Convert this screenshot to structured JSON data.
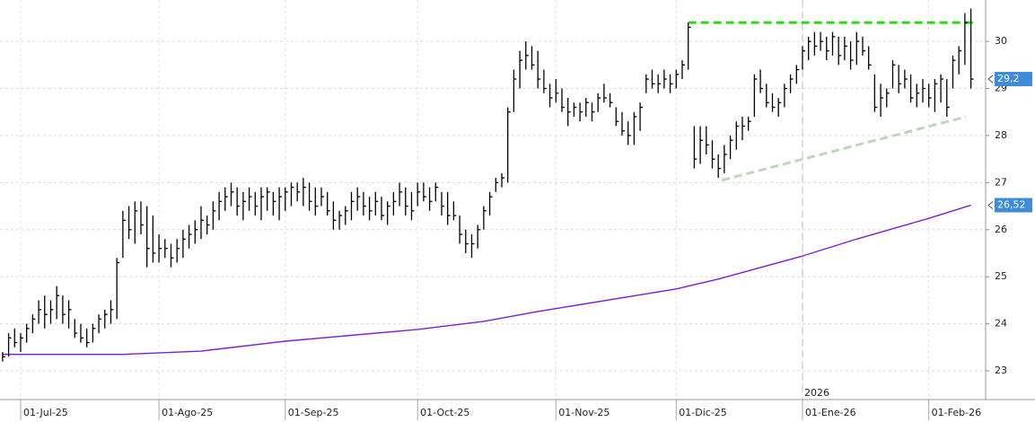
{
  "chart_data": {
    "type": "ohlc",
    "color": "#000000",
    "x": [
      -3,
      -2,
      -1,
      0,
      1,
      2,
      3,
      4,
      5,
      6,
      7,
      8,
      9,
      10,
      11,
      12,
      13,
      14,
      15,
      16,
      17,
      18,
      19,
      20,
      21,
      22,
      23,
      24,
      25,
      26,
      27,
      28,
      29,
      30,
      31,
      32,
      33,
      34,
      35,
      36,
      37,
      38,
      39,
      40,
      41,
      42,
      43,
      44,
      45,
      46,
      47,
      48,
      49,
      50,
      51,
      52,
      53,
      54,
      55,
      56,
      57,
      58,
      59,
      60,
      61,
      62,
      63,
      64,
      65,
      66,
      67,
      68,
      69,
      70,
      71,
      72,
      73,
      74,
      75,
      76,
      77,
      78,
      79,
      80,
      81,
      82,
      83,
      84,
      85,
      86,
      87,
      88,
      89,
      90,
      91,
      92,
      93,
      94,
      95,
      96,
      97,
      98,
      99,
      100,
      101,
      102,
      103,
      104,
      105,
      106,
      107,
      108,
      109,
      110,
      111,
      112,
      113,
      114,
      115,
      116,
      117,
      118,
      119,
      120,
      121,
      122,
      123,
      124,
      125,
      126,
      127,
      128,
      129,
      130,
      131,
      132,
      133,
      134,
      135,
      136,
      137,
      138,
      139,
      140,
      141,
      142,
      143,
      144,
      145,
      146,
      147,
      148,
      149,
      150,
      151,
      152,
      153,
      154,
      155,
      156,
      157,
      158
    ],
    "low": [
      23.2,
      23.3,
      23.5,
      23.4,
      23.6,
      23.8,
      24.0,
      23.9,
      24.0,
      24.1,
      24.0,
      23.9,
      23.7,
      23.6,
      23.5,
      23.6,
      23.8,
      23.9,
      24.0,
      24.1,
      25.4,
      25.8,
      25.7,
      25.9,
      25.2,
      25.3,
      25.3,
      25.4,
      25.2,
      25.3,
      25.4,
      25.6,
      25.7,
      25.8,
      25.9,
      26.0,
      26.2,
      26.4,
      26.5,
      26.3,
      26.2,
      26.4,
      26.3,
      26.2,
      26.4,
      26.3,
      26.2,
      26.4,
      26.5,
      26.6,
      26.5,
      26.4,
      26.3,
      26.5,
      26.3,
      26.0,
      26.0,
      26.1,
      26.2,
      26.4,
      26.3,
      26.2,
      26.3,
      26.2,
      26.1,
      26.3,
      26.5,
      26.3,
      26.2,
      26.5,
      26.6,
      26.4,
      26.6,
      26.3,
      26.1,
      26.2,
      25.7,
      25.5,
      25.4,
      25.6,
      26.0,
      26.3,
      26.8,
      26.9,
      27.0,
      28.5,
      29.0,
      29.4,
      29.4,
      29.0,
      28.9,
      28.6,
      28.7,
      28.5,
      28.2,
      28.4,
      28.3,
      28.4,
      28.3,
      28.5,
      28.7,
      28.6,
      28.2,
      28.0,
      27.8,
      27.8,
      28.1,
      28.9,
      29.0,
      28.9,
      29.0,
      28.9,
      29.0,
      29.2,
      29.4,
      27.3,
      27.4,
      27.6,
      27.3,
      27.1,
      27.2,
      27.5,
      27.7,
      27.9,
      28.1,
      28.4,
      28.9,
      28.6,
      28.5,
      28.4,
      28.6,
      28.9,
      29.1,
      29.4,
      29.6,
      29.7,
      29.8,
      29.6,
      29.7,
      29.5,
      29.6,
      29.4,
      29.5,
      29.7,
      29.4,
      28.5,
      28.4,
      28.6,
      29.0,
      28.9,
      29.0,
      28.7,
      28.6,
      28.7,
      28.6,
      28.5,
      28.7,
      28.4,
      29.0,
      29.3,
      29.5,
      29.0
    ],
    "high": [
      23.4,
      23.8,
      23.9,
      23.8,
      24.0,
      24.2,
      24.5,
      24.6,
      24.5,
      24.8,
      24.6,
      24.5,
      24.1,
      24.0,
      23.9,
      24.0,
      24.2,
      24.3,
      24.5,
      25.4,
      26.4,
      26.5,
      26.6,
      26.6,
      26.5,
      26.3,
      25.9,
      25.8,
      25.7,
      25.8,
      26.0,
      26.1,
      26.2,
      26.5,
      26.3,
      26.6,
      26.8,
      26.9,
      27.0,
      26.9,
      26.8,
      26.9,
      26.8,
      26.9,
      26.9,
      26.8,
      26.9,
      26.9,
      27.0,
      27.0,
      27.1,
      27.0,
      26.9,
      26.9,
      26.8,
      26.6,
      26.4,
      26.5,
      26.8,
      26.9,
      26.8,
      26.7,
      26.8,
      26.7,
      26.6,
      26.8,
      27.0,
      26.9,
      26.8,
      27.0,
      27.0,
      26.9,
      27.0,
      26.8,
      26.8,
      26.6,
      26.3,
      26.0,
      25.9,
      26.1,
      26.5,
      26.8,
      27.1,
      27.2,
      28.6,
      29.4,
      29.8,
      30.0,
      29.9,
      29.8,
      29.4,
      29.1,
      29.2,
      29.0,
      28.8,
      28.7,
      28.7,
      28.8,
      28.7,
      28.9,
      29.1,
      28.9,
      28.6,
      28.5,
      28.3,
      28.5,
      28.7,
      29.3,
      29.4,
      29.3,
      29.4,
      29.3,
      29.4,
      29.6,
      30.4,
      28.2,
      28.2,
      28.2,
      27.9,
      27.6,
      27.8,
      28.0,
      28.3,
      28.4,
      28.4,
      29.3,
      29.4,
      29.1,
      28.9,
      28.8,
      29.1,
      29.3,
      29.5,
      29.9,
      30.1,
      30.2,
      30.2,
      30.1,
      30.2,
      30.1,
      30.1,
      30.0,
      30.2,
      30.1,
      29.9,
      29.3,
      29.1,
      29.0,
      29.6,
      29.5,
      29.4,
      29.3,
      29.1,
      29.2,
      29.1,
      29.2,
      29.3,
      29.2,
      29.7,
      29.9,
      30.6,
      30.7
    ],
    "close": [
      23.3,
      23.7,
      23.6,
      23.7,
      23.9,
      24.1,
      24.3,
      24.2,
      24.3,
      24.6,
      24.2,
      24.3,
      23.8,
      23.7,
      23.6,
      23.9,
      24.1,
      24.2,
      24.3,
      25.3,
      26.2,
      26.0,
      26.4,
      26.1,
      25.6,
      25.5,
      25.6,
      25.6,
      25.4,
      25.6,
      25.8,
      25.9,
      26.0,
      26.2,
      26.1,
      26.4,
      26.6,
      26.7,
      26.8,
      26.5,
      26.6,
      26.7,
      26.5,
      26.7,
      26.8,
      26.6,
      26.7,
      26.8,
      26.9,
      26.8,
      26.9,
      26.6,
      26.5,
      26.7,
      26.4,
      26.2,
      26.3,
      26.4,
      26.6,
      26.7,
      26.5,
      26.4,
      26.6,
      26.3,
      26.5,
      26.6,
      26.8,
      26.5,
      26.4,
      26.8,
      26.7,
      26.6,
      26.9,
      26.5,
      26.3,
      26.3,
      25.9,
      25.7,
      25.7,
      26.0,
      26.4,
      26.7,
      27.0,
      27.1,
      28.5,
      29.2,
      29.6,
      29.7,
      29.5,
      29.2,
      29.0,
      28.8,
      28.9,
      28.6,
      28.5,
      28.6,
      28.5,
      28.7,
      28.5,
      28.8,
      28.8,
      28.7,
      28.3,
      28.1,
      28.0,
      28.4,
      28.6,
      29.2,
      29.1,
      29.1,
      29.2,
      29.1,
      29.3,
      29.5,
      30.3,
      27.5,
      27.9,
      27.8,
      27.5,
      27.3,
      27.6,
      27.9,
      28.2,
      28.2,
      28.3,
      29.2,
      29.0,
      28.7,
      28.6,
      28.7,
      29.0,
      29.2,
      29.4,
      29.8,
      30.0,
      29.9,
      30.0,
      29.8,
      30.1,
      29.7,
      29.9,
      29.6,
      30.0,
      29.8,
      29.5,
      28.6,
      28.8,
      28.9,
      29.5,
      29.1,
      29.2,
      28.8,
      28.9,
      29.0,
      28.8,
      29.1,
      29.2,
      28.6,
      29.6,
      29.8,
      30.4,
      29.2
    ],
    "moving_average": {
      "color": "#7b1fd1",
      "x": [
        -3,
        17,
        30,
        44,
        66,
        77,
        86,
        109,
        116,
        130,
        139,
        151,
        158
      ],
      "values": [
        23.35,
        23.35,
        23.42,
        23.63,
        23.88,
        24.05,
        24.26,
        24.74,
        24.95,
        25.44,
        25.8,
        26.24,
        26.52
      ]
    },
    "resistance": {
      "color": "#22dd11",
      "x": [
        111,
        158.8
      ],
      "values": [
        30.4,
        30.4
      ]
    },
    "trend": {
      "color": "#bcd8b8",
      "x": [
        116.6,
        157.2
      ],
      "values": [
        27.05,
        28.4
      ]
    },
    "year_marker": {
      "value": 130,
      "label": "2026"
    },
    "last_label": {
      "value": 29.2,
      "label": "29,2"
    },
    "ma_label": {
      "value": 26.52,
      "label": "26,52"
    },
    "xlim": [
      -3.43,
      160.45
    ],
    "ylim": [
      22.39,
      30.88
    ],
    "xticks": [
      {
        "value": 0,
        "label": "01-Jul-25"
      },
      {
        "value": 23,
        "label": "01-Ago-25"
      },
      {
        "value": 44,
        "label": "01-Sep-25"
      },
      {
        "value": 66,
        "label": "01-Oct-25"
      },
      {
        "value": 89,
        "label": "01-Nov-25"
      },
      {
        "value": 109,
        "label": "01-Dic-25"
      },
      {
        "value": 130,
        "label": "01-Ene-26"
      },
      {
        "value": 151,
        "label": "01-Feb-26"
      }
    ],
    "yticks": [
      23,
      24,
      25,
      26,
      27,
      28,
      29,
      30
    ],
    "grid": true
  }
}
